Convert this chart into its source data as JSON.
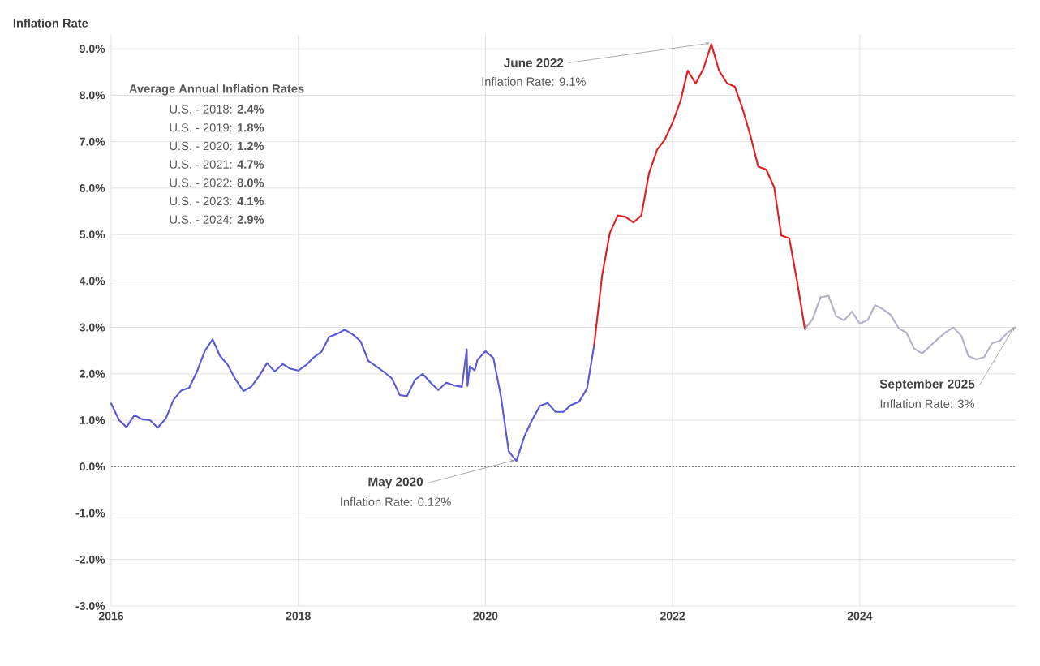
{
  "chart_data": {
    "type": "line",
    "ylabel": "Inflation Rate",
    "series": [
      {
        "color": "#5a5ad6",
        "x": [
          "2016-01",
          "2016-02",
          "2016-03",
          "2016-04",
          "2016-05",
          "2016-06",
          "2016-07",
          "2016-08",
          "2016-09",
          "2016-10",
          "2016-11",
          "2016-12",
          "2017-01",
          "2017-02",
          "2017-03",
          "2017-04",
          "2017-05",
          "2017-06",
          "2017-07",
          "2017-08",
          "2017-09",
          "2017-10",
          "2017-11",
          "2017-12",
          "2018-01",
          "2018-02",
          "2018-03",
          "2018-04",
          "2018-05",
          "2018-06",
          "2018-07",
          "2018-08",
          "2018-09",
          "2018-10",
          "2018-11",
          "2018-12",
          "2019-01",
          "2019-02",
          "2019-03",
          "2019-04",
          "2019-05",
          "2019-06",
          "2019-07",
          "2019-08",
          "2019-09",
          "2019-10",
          "2019-10-20",
          "2019-10-23",
          "2019-11",
          "2019-11-20",
          "2019-12",
          "2020-01",
          "2020-02",
          "2020-03",
          "2020-04",
          "2020-05",
          "2020-06",
          "2020-07",
          "2020-08",
          "2020-09",
          "2020-10",
          "2020-11",
          "2020-12",
          "2021-01",
          "2021-02",
          "2021-03"
        ],
        "values": [
          1.36,
          1.0,
          0.85,
          1.11,
          1.02,
          1.0,
          0.84,
          1.03,
          1.44,
          1.64,
          1.7,
          2.04,
          2.49,
          2.74,
          2.39,
          2.19,
          1.88,
          1.63,
          1.72,
          1.95,
          2.23,
          2.05,
          2.21,
          2.11,
          2.07,
          2.19,
          2.35,
          2.47,
          2.79,
          2.86,
          2.95,
          2.85,
          2.7,
          2.28,
          2.16,
          2.04,
          1.9,
          1.54,
          1.52,
          1.87,
          2.0,
          1.81,
          1.65,
          1.81,
          1.75,
          1.72,
          2.53,
          1.74,
          2.16,
          2.07,
          2.3,
          2.49,
          2.34,
          1.53,
          0.33,
          0.12,
          0.65,
          1.0,
          1.31,
          1.37,
          1.18,
          1.18,
          1.33,
          1.4,
          1.68,
          2.62
        ]
      },
      {
        "color": "#e02020",
        "x": [
          "2021-03",
          "2021-04",
          "2021-05",
          "2021-06",
          "2021-07",
          "2021-08",
          "2021-09",
          "2021-10",
          "2021-11",
          "2021-12",
          "2022-01",
          "2022-02",
          "2022-03",
          "2022-04",
          "2022-05",
          "2022-06",
          "2022-07",
          "2022-08",
          "2022-09",
          "2022-10",
          "2022-11",
          "2022-12",
          "2023-01",
          "2023-02",
          "2023-03",
          "2023-04",
          "2023-05",
          "2023-06"
        ],
        "values": [
          2.62,
          4.12,
          5.03,
          5.41,
          5.38,
          5.26,
          5.41,
          6.32,
          6.82,
          7.04,
          7.41,
          7.88,
          8.53,
          8.25,
          8.57,
          9.1,
          8.53,
          8.26,
          8.18,
          7.71,
          7.12,
          6.46,
          6.4,
          6.02,
          4.98,
          4.92,
          4.01,
          2.96
        ]
      },
      {
        "color": "#b8b0c8",
        "x": [
          "2023-06",
          "2023-07",
          "2023-08",
          "2023-09",
          "2023-10",
          "2023-11",
          "2023-12",
          "2024-01",
          "2024-02",
          "2024-03",
          "2024-04",
          "2024-05",
          "2024-06",
          "2024-07",
          "2024-08",
          "2024-09",
          "2024-10",
          "2024-11",
          "2024-12",
          "2025-01",
          "2025-02",
          "2025-03",
          "2025-04",
          "2025-05",
          "2025-06",
          "2025-07",
          "2025-08",
          "2025-09"
        ],
        "values": [
          2.96,
          3.18,
          3.65,
          3.68,
          3.24,
          3.15,
          3.34,
          3.08,
          3.16,
          3.48,
          3.39,
          3.27,
          2.98,
          2.89,
          2.54,
          2.44,
          2.59,
          2.75,
          2.89,
          3.0,
          2.82,
          2.38,
          2.31,
          2.36,
          2.66,
          2.71,
          2.89,
          3.0
        ]
      }
    ],
    "xlim": [
      "2016-01",
      "2025-09"
    ],
    "xticks": [
      "2016",
      "2018",
      "2020",
      "2022",
      "2024"
    ],
    "ylim": [
      -3,
      9.3
    ],
    "yticks": [
      {
        "value": -3,
        "label": "-3.0%"
      },
      {
        "value": -2,
        "label": "-2.0%"
      },
      {
        "value": -1,
        "label": "-1.0%"
      },
      {
        "value": 0,
        "label": "0.0%"
      },
      {
        "value": 1,
        "label": "1.0%"
      },
      {
        "value": 2,
        "label": "2.0%"
      },
      {
        "value": 3,
        "label": "3.0%"
      },
      {
        "value": 4,
        "label": "4.0%"
      },
      {
        "value": 5,
        "label": "5.0%"
      },
      {
        "value": 6,
        "label": "6.0%"
      },
      {
        "value": 7,
        "label": "7.0%"
      },
      {
        "value": 8,
        "label": "8.0%"
      },
      {
        "value": 9,
        "label": "9.0%"
      }
    ],
    "grid": true,
    "ref_lines": [
      {
        "axis": "y",
        "value": 0,
        "color": "#595959",
        "line_style": "dotted"
      }
    ],
    "annotations": [
      "Average Annual Inflation Rates",
      "U.S. - 2018: **2.4%**",
      "U.S. - 2019: **1.8%**",
      "U.S. - 2020: **1.2%**",
      "U.S. - 2021: **4.7%**",
      "U.S. - 2022: **8.0%**",
      "U.S. - 2023: **4.1%**",
      "U.S. - 2024: **2.9%**",
      {
        "text": "May 2020",
        "x": "2020-05",
        "y": 0.12
      },
      {
        "text": "Inflation Rate: 0.12%",
        "x": "2020-05",
        "y": 0.12
      },
      {
        "text": "June 2022",
        "x": "2022-06",
        "y": 9.1
      },
      {
        "text": "Inflation Rate: 9.1%",
        "x": "2022-06",
        "y": 9.1
      },
      {
        "text": "September 2025",
        "x": "2025-09",
        "y": 3.0
      },
      {
        "text": "Inflation Rate: 3%",
        "x": "2025-09",
        "y": 3.0
      }
    ]
  }
}
